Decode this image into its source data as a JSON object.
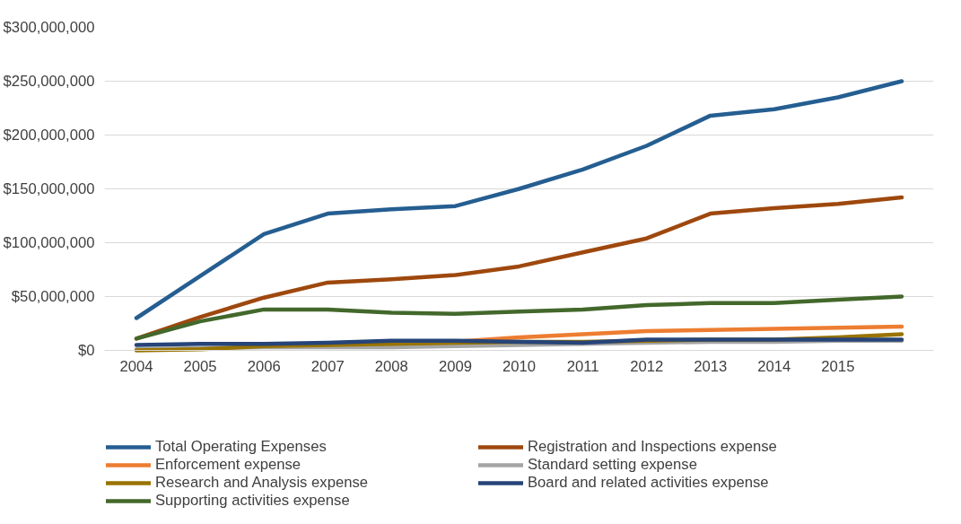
{
  "chart_data": {
    "type": "line",
    "categories": [
      "2004",
      "2005",
      "2006",
      "2007",
      "2008",
      "2009",
      "2010",
      "2011",
      "2012",
      "2013",
      "2014",
      "2015",
      null
    ],
    "series": [
      {
        "name": "Total Operating Expenses",
        "color": "#255e91",
        "values": [
          30000000,
          69000000,
          108000000,
          127000000,
          131000000,
          134000000,
          150000000,
          168000000,
          190000000,
          218000000,
          224000000,
          235000000,
          250000000
        ]
      },
      {
        "name": "Registration and Inspections expense",
        "color": "#9e480e",
        "values": [
          11000000,
          31000000,
          49000000,
          63000000,
          66000000,
          70000000,
          78000000,
          91000000,
          104000000,
          127000000,
          132000000,
          136000000,
          142000000
        ]
      },
      {
        "name": "Enforcement expense",
        "color": "#ed7d31",
        "values": [
          null,
          null,
          null,
          null,
          6000000,
          8000000,
          12000000,
          15000000,
          18000000,
          19000000,
          20000000,
          21000000,
          22000000
        ]
      },
      {
        "name": "Standard setting expense",
        "color": "#a5a5a5",
        "values": [
          1000000,
          2000000,
          3000000,
          3000000,
          3000000,
          4000000,
          5000000,
          6000000,
          7000000,
          8000000,
          8000000,
          9000000,
          9000000
        ]
      },
      {
        "name": "Research and Analysis expense",
        "color": "#997300",
        "values": [
          0,
          1000000,
          4000000,
          5000000,
          6000000,
          7000000,
          8000000,
          8000000,
          9000000,
          10000000,
          10000000,
          12000000,
          15000000
        ]
      },
      {
        "name": "Board and related activities expense",
        "color": "#264478",
        "values": [
          5000000,
          6000000,
          6000000,
          7000000,
          9000000,
          9000000,
          8000000,
          7000000,
          10000000,
          10000000,
          10000000,
          10000000,
          10000000
        ]
      },
      {
        "name": "Supporting activities expense",
        "color": "#43682b",
        "values": [
          11000000,
          27000000,
          38000000,
          38000000,
          35000000,
          34000000,
          36000000,
          38000000,
          42000000,
          44000000,
          44000000,
          47000000,
          50000000
        ]
      }
    ],
    "ylim": [
      0,
      300000000
    ],
    "yticks": [
      {
        "value": 0,
        "label": "$0"
      },
      {
        "value": 50000000,
        "label": "$50,000,000"
      },
      {
        "value": 100000000,
        "label": "$100,000,000"
      },
      {
        "value": 150000000,
        "label": "$150,000,000"
      },
      {
        "value": 200000000,
        "label": "$200,000,000"
      },
      {
        "value": 250000000,
        "label": "$250,000,000"
      },
      {
        "value": 300000000,
        "label": "$300,000,000"
      }
    ],
    "grid": "y",
    "legend": "bottom",
    "line_style": "solid",
    "marker": "none"
  }
}
